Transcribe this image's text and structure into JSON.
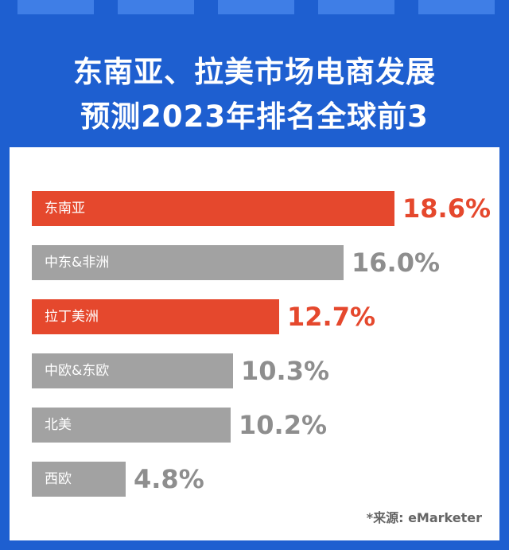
{
  "header": {
    "title_line1": "东南亚、拉美市场电商发展",
    "title_line2": "预测2023年排名全球前3"
  },
  "source": "*来源: eMarketer",
  "colors": {
    "background": "#1e5fd0",
    "highlight": "#e5482d",
    "neutral": "#a2a2a2",
    "neutral_text": "#8e8e8e"
  },
  "chart_data": {
    "type": "bar",
    "orientation": "horizontal",
    "title": "东南亚、拉美市场电商发展 预测2023年排名全球前3",
    "categories": [
      "东南亚",
      "中东&非洲",
      "拉丁美洲",
      "中欧&东欧",
      "北美",
      "西欧"
    ],
    "values": [
      18.6,
      16.0,
      12.7,
      10.3,
      10.2,
      4.8
    ],
    "value_labels": [
      "18.6%",
      "16.0%",
      "12.7%",
      "10.3%",
      "10.2%",
      "4.8%"
    ],
    "highlighted": [
      true,
      false,
      true,
      false,
      false,
      false
    ],
    "xlabel": "",
    "ylabel": "",
    "grid": false
  }
}
